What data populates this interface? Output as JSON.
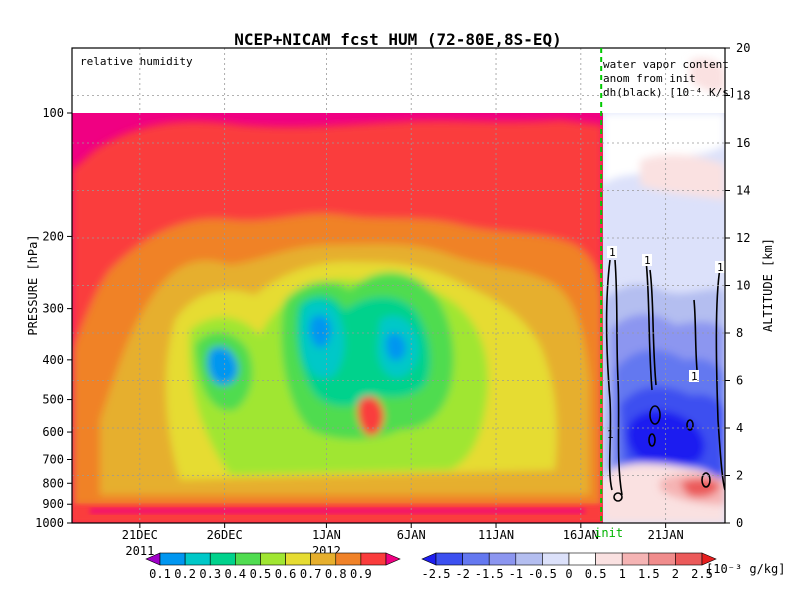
{
  "chart_data": {
    "type": "heatmap",
    "title": "NCEP+NICAM_fcst HUM (72-80E,8S-EQ)",
    "left_panel_label": "relative humidity",
    "right_panel_label_lines": [
      "water vapor content",
      "anom from init",
      "dh(black) [10⁻⁴ K/s]"
    ],
    "init_label": "init",
    "ylabel": "PRESSURE [hPa]",
    "y2label": "ALTITUDE [km]",
    "pressure_ticks": [
      "100",
      "200",
      "300",
      "400",
      "500",
      "600",
      "700",
      "800",
      "900",
      "1000"
    ],
    "pressure_values": [
      100,
      200,
      300,
      400,
      500,
      600,
      700,
      800,
      900,
      1000
    ],
    "altitude_ticks": [
      "0",
      "2",
      "4",
      "6",
      "8",
      "10",
      "12",
      "14",
      "16",
      "18",
      "20"
    ],
    "x_ticks": [
      "21DEC",
      "26DEC",
      "1JAN",
      "6JAN",
      "11JAN",
      "16JAN",
      "21JAN"
    ],
    "x_day_index": [
      4,
      9,
      15,
      20,
      25,
      30,
      35
    ],
    "x_sublabels": [
      {
        "text": "2011",
        "day_index": 4
      },
      {
        "text": "2012",
        "day_index": 15
      }
    ],
    "init_day_index": 31.2,
    "x_range_days": [
      0,
      38.5
    ],
    "contour_label": "1",
    "colorbar_left": {
      "ticks": [
        "0.1",
        "0.2",
        "0.3",
        "0.4",
        "0.5",
        "0.6",
        "0.7",
        "0.8",
        "0.9"
      ],
      "colors": [
        "#a000c8",
        "#0096f0",
        "#00c8c8",
        "#00d28c",
        "#50dc50",
        "#a0e632",
        "#e6dc32",
        "#e6af2d",
        "#f08228",
        "#fa3c3c",
        "#f00082"
      ]
    },
    "colorbar_right": {
      "ticks": [
        "-2.5",
        "-2",
        "-1.5",
        "-1",
        "-0.5",
        "0",
        "0.5",
        "1",
        "1.5",
        "2",
        "2.5"
      ],
      "unit": "[10⁻³ g/kg]",
      "colors": [
        "#1e1ef0",
        "#3c50f0",
        "#6478f0",
        "#8c96f0",
        "#b4bef0",
        "#dce1fa",
        "#ffffff",
        "#fae1e1",
        "#f5b4b4",
        "#f08c8c",
        "#eb5a5a",
        "#e61e1e"
      ]
    }
  }
}
